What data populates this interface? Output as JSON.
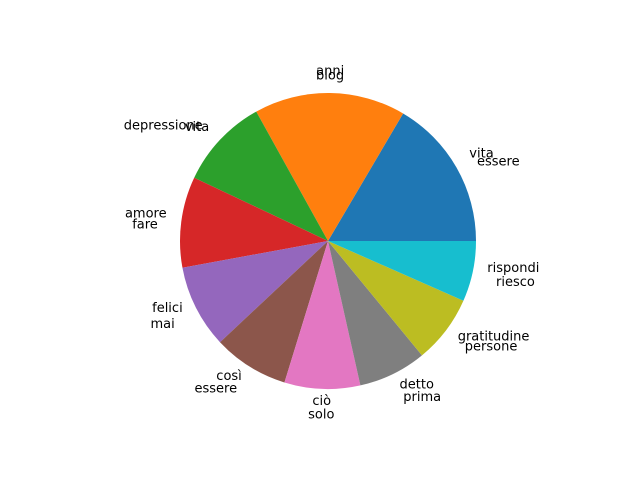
{
  "chart_data": {
    "type": "pie",
    "start_angle_deg": 0,
    "direction": "counterclockwise",
    "slices": [
      {
        "labels": [
          "vita",
          "essere"
        ],
        "value": 2,
        "color": "#1f77b4"
      },
      {
        "labels": [
          "blog",
          "anni"
        ],
        "value": 2,
        "color": "#ff7f0e"
      },
      {
        "labels": [
          "vita",
          "depressione"
        ],
        "value": 1.2,
        "color": "#2ca02c"
      },
      {
        "labels": [
          "amore",
          "fare"
        ],
        "value": 1.2,
        "color": "#d62728"
      },
      {
        "labels": [
          "felici",
          "mai"
        ],
        "value": 1.1,
        "color": "#9467bd"
      },
      {
        "labels": [
          "così",
          "essere"
        ],
        "value": 1.0,
        "color": "#8c564b"
      },
      {
        "labels": [
          "ciò",
          "solo"
        ],
        "value": 1.0,
        "color": "#e377c2"
      },
      {
        "labels": [
          "detto",
          "prima"
        ],
        "value": 0.9,
        "color": "#7f7f7f"
      },
      {
        "labels": [
          "gratitudine",
          "persone"
        ],
        "value": 0.9,
        "color": "#bcbd22"
      },
      {
        "labels": [
          "rispondi",
          "riesco"
        ],
        "value": 0.8,
        "color": "#17becf"
      }
    ]
  }
}
